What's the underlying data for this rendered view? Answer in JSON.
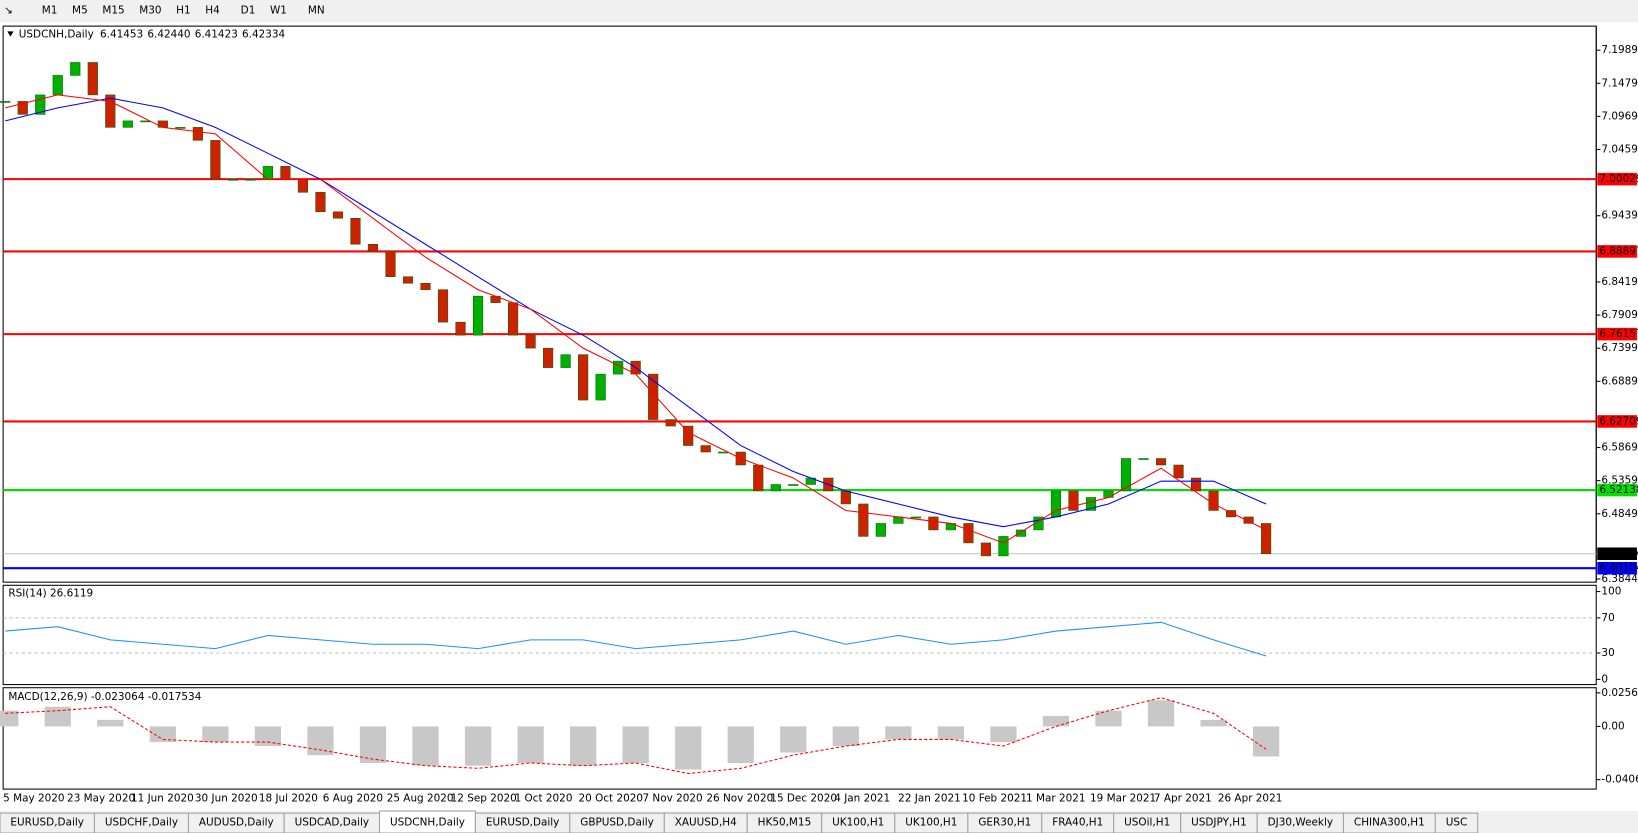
{
  "toolbar": {
    "timeframes": [
      "M1",
      "M5",
      "M15",
      "M30",
      "H1",
      "H4",
      "D1",
      "W1",
      "MN"
    ]
  },
  "chart": {
    "symbol": "USDCNH,Daily",
    "ohlc": [
      "6.41453",
      "6.42440",
      "6.41423",
      "6.42334"
    ],
    "price_ticks": [
      {
        "value": 7.1989,
        "label": "7.19890"
      },
      {
        "value": 7.1479,
        "label": "7.14790"
      },
      {
        "value": 7.0969,
        "label": "7.09690"
      },
      {
        "value": 7.0459,
        "label": "7.04590"
      },
      {
        "value": 6.9439,
        "label": "6.94390"
      },
      {
        "value": 6.8419,
        "label": "6.84190"
      },
      {
        "value": 6.7909,
        "label": "6.79090"
      },
      {
        "value": 6.7399,
        "label": "6.73990"
      },
      {
        "value": 6.6889,
        "label": "6.68890"
      },
      {
        "value": 6.5869,
        "label": "6.58690"
      },
      {
        "value": 6.5359,
        "label": "6.53590"
      },
      {
        "value": 6.4849,
        "label": "6.48490"
      },
      {
        "value": 6.3844,
        "label": "6.38440"
      }
    ],
    "levels": [
      {
        "value": 7.00029,
        "color": "#ff0000"
      },
      {
        "value": 6.88897,
        "color": "#ff0000"
      },
      {
        "value": 6.76157,
        "color": "#ff0000"
      },
      {
        "value": 6.62709,
        "color": "#ff0000"
      },
      {
        "value": 6.52138,
        "color": "#00e000"
      },
      {
        "value": 6.40104,
        "color": "#0000ff"
      }
    ],
    "current_price": 6.42334,
    "closes": [
      7.12,
      7.1,
      7.13,
      7.16,
      7.18,
      7.13,
      7.08,
      7.09,
      7.09,
      7.08,
      7.08,
      7.06,
      7.0,
      7.0,
      7.0,
      7.02,
      7.0,
      6.98,
      6.95,
      6.94,
      6.9,
      6.89,
      6.85,
      6.84,
      6.83,
      6.78,
      6.76,
      6.82,
      6.81,
      6.76,
      6.74,
      6.71,
      6.73,
      6.66,
      6.7,
      6.72,
      6.7,
      6.63,
      6.62,
      6.59,
      6.58,
      6.58,
      6.56,
      6.52,
      6.53,
      6.53,
      6.54,
      6.52,
      6.5,
      6.45,
      6.47,
      6.48,
      6.48,
      6.46,
      6.47,
      6.44,
      6.42,
      6.45,
      6.46,
      6.48,
      6.52,
      6.49,
      6.51,
      6.52,
      6.57,
      6.57,
      6.56,
      6.54,
      6.52,
      6.49,
      6.48,
      6.47,
      6.42334
    ],
    "ma_slow": {
      "color": "#0000ff",
      "values": [
        7.09,
        7.11,
        7.125,
        7.11,
        7.08,
        7.04,
        7.0,
        6.95,
        6.9,
        6.85,
        6.8,
        6.76,
        6.71,
        6.65,
        6.59,
        6.55,
        6.52,
        6.5,
        6.48,
        6.465,
        6.48,
        6.5,
        6.535,
        6.535,
        6.5
      ]
    },
    "ma_fast": {
      "color": "#ff0000",
      "values": [
        7.11,
        7.13,
        7.12,
        7.08,
        7.07,
        7.0,
        7.0,
        6.94,
        6.88,
        6.83,
        6.8,
        6.74,
        6.7,
        6.61,
        6.57,
        6.54,
        6.49,
        6.48,
        6.47,
        6.44,
        6.49,
        6.51,
        6.555,
        6.5,
        6.46
      ]
    },
    "dates": [
      "5 May 2020",
      "23 May 2020",
      "11 Jun 2020",
      "30 Jun 2020",
      "18 Jul 2020",
      "6 Aug 2020",
      "25 Aug 2020",
      "12 Sep 2020",
      "1 Oct 2020",
      "20 Oct 2020",
      "7 Nov 2020",
      "26 Nov 2020",
      "15 Dec 2020",
      "4 Jan 2021",
      "22 Jan 2021",
      "10 Feb 2021",
      "1 Mar 2021",
      "19 Mar 2021",
      "7 Apr 2021",
      "26 Apr 2021"
    ]
  },
  "rsi": {
    "title": "RSI(14) 26.6119",
    "ticks": [
      100,
      70,
      30,
      0
    ],
    "levels": [
      70,
      30
    ],
    "color": "#1e90ff",
    "values": [
      55,
      60,
      45,
      40,
      35,
      50,
      45,
      40,
      40,
      35,
      45,
      45,
      35,
      40,
      45,
      55,
      40,
      50,
      40,
      45,
      55,
      60,
      65,
      45,
      26.6
    ]
  },
  "macd": {
    "title": "MACD(12,26,9) -0.023064 -0.017534",
    "ticks": [
      0.025623,
      {
        "value": 0,
        "label": "0.00"
      },
      -0.040687
    ],
    "histogram": [
      0.012,
      0.015,
      0.005,
      -0.012,
      -0.012,
      -0.015,
      -0.022,
      -0.028,
      -0.03,
      -0.03,
      -0.028,
      -0.03,
      -0.028,
      -0.033,
      -0.028,
      -0.02,
      -0.015,
      -0.01,
      -0.01,
      -0.012,
      0.008,
      0.012,
      0.02,
      0.005,
      -0.023
    ],
    "signal": [
      0.01,
      0.012,
      0.015,
      -0.01,
      -0.012,
      -0.012,
      -0.018,
      -0.025,
      -0.03,
      -0.032,
      -0.028,
      -0.03,
      -0.028,
      -0.036,
      -0.032,
      -0.022,
      -0.015,
      -0.01,
      -0.01,
      -0.015,
      0.0,
      0.012,
      0.022,
      0.01,
      -0.0175
    ]
  },
  "tabs": [
    "EURUSD,Daily",
    "USDCHF,Daily",
    "AUDUSD,Daily",
    "USDCAD,Daily",
    "USDCNH,Daily",
    "EURUSD,Daily",
    "GBPUSD,Daily",
    "XAUUSD,H4",
    "HK50,M15",
    "UK100,H1",
    "UK100,H1",
    "GER30,H1",
    "FRA40,H1",
    "USOil,H1",
    "USDJPY,H1",
    "DJ30,Weekly",
    "CHINA300,H1",
    "USC"
  ],
  "active_tab": 4
}
